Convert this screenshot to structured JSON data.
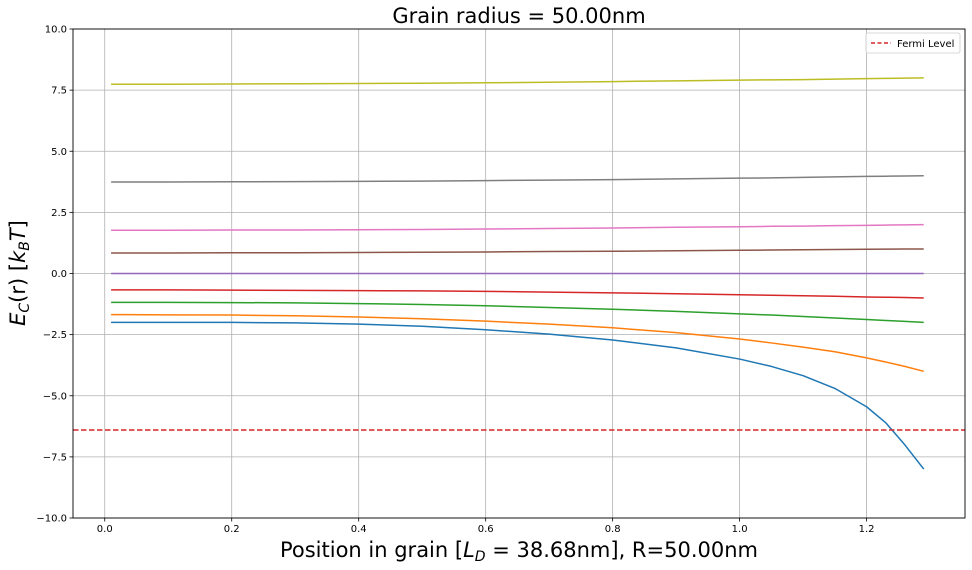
{
  "chart_data": {
    "type": "line",
    "title": "Grain radius = 50.00nm",
    "xlabel": "Position in grain [L_D = 38.68nm], R=50.00nm",
    "xlabel_parts": {
      "prefix": "Position in grain [",
      "sym": "L",
      "sub": "D",
      "suffix": " = 38.68nm], R=50.00nm"
    },
    "ylabel": "E_C(r) [k_BT]",
    "ylabel_parts": {
      "e": "E",
      "e_sub": "C",
      "mid": "(r) [",
      "k": "k",
      "k_sub": "B",
      "t": "T",
      "end": "]"
    },
    "xlim": [
      -0.05,
      1.355
    ],
    "ylim": [
      -10.0,
      10.0
    ],
    "x_ticks": [
      0.0,
      0.2,
      0.4,
      0.6,
      0.8,
      1.0,
      1.2
    ],
    "x_tick_labels": [
      "0.0",
      "0.2",
      "0.4",
      "0.6",
      "0.8",
      "1.0",
      "1.2"
    ],
    "y_ticks": [
      -10.0,
      -7.5,
      -5.0,
      -2.5,
      0.0,
      2.5,
      5.0,
      7.5,
      10.0
    ],
    "y_tick_labels": [
      "−10.0",
      "−7.5",
      "−5.0",
      "−2.5",
      "0.0",
      "2.5",
      "5.0",
      "7.5",
      "10.0"
    ],
    "grid": true,
    "legend_position": "top-right",
    "hline": {
      "name": "Fermi Level",
      "y": -6.4,
      "color": "#d62728",
      "style": "dashed"
    },
    "x": [
      0.01,
      0.1,
      0.2,
      0.3,
      0.4,
      0.5,
      0.6,
      0.7,
      0.8,
      0.9,
      1.0,
      1.05,
      1.1,
      1.15,
      1.2,
      1.23,
      1.26,
      1.29
    ],
    "series": [
      {
        "color": "#1f77b4",
        "values": [
          -2.0,
          -2.0,
          -2.0,
          -2.02,
          -2.07,
          -2.16,
          -2.3,
          -2.48,
          -2.72,
          -3.04,
          -3.5,
          -3.8,
          -4.18,
          -4.7,
          -5.45,
          -6.1,
          -7.0,
          -8.0
        ]
      },
      {
        "color": "#ff7f0e",
        "values": [
          -1.68,
          -1.69,
          -1.7,
          -1.73,
          -1.78,
          -1.85,
          -1.95,
          -2.07,
          -2.22,
          -2.42,
          -2.68,
          -2.84,
          -3.01,
          -3.2,
          -3.45,
          -3.62,
          -3.8,
          -4.0
        ]
      },
      {
        "color": "#2ca02c",
        "values": [
          -1.18,
          -1.18,
          -1.19,
          -1.2,
          -1.23,
          -1.27,
          -1.32,
          -1.39,
          -1.46,
          -1.55,
          -1.65,
          -1.7,
          -1.76,
          -1.82,
          -1.88,
          -1.92,
          -1.96,
          -2.0
        ]
      },
      {
        "color": "#d62728",
        "values": [
          -0.67,
          -0.67,
          -0.68,
          -0.69,
          -0.7,
          -0.71,
          -0.73,
          -0.76,
          -0.79,
          -0.83,
          -0.87,
          -0.89,
          -0.91,
          -0.93,
          -0.96,
          -0.97,
          -0.98,
          -1.0
        ]
      },
      {
        "color": "#9467bd",
        "values": [
          0.0,
          0.0,
          0.0,
          0.0,
          0.0,
          0.0,
          0.0,
          0.0,
          0.0,
          0.0,
          0.0,
          0.0,
          0.0,
          0.0,
          0.0,
          0.0,
          0.0,
          0.0
        ]
      },
      {
        "color": "#8c564b",
        "values": [
          0.84,
          0.84,
          0.85,
          0.85,
          0.86,
          0.87,
          0.88,
          0.9,
          0.91,
          0.93,
          0.95,
          0.96,
          0.97,
          0.98,
          0.99,
          0.995,
          1.0,
          1.0
        ]
      },
      {
        "color": "#e377c2",
        "values": [
          1.77,
          1.77,
          1.78,
          1.78,
          1.79,
          1.8,
          1.82,
          1.84,
          1.86,
          1.89,
          1.91,
          1.93,
          1.94,
          1.96,
          1.97,
          1.98,
          1.99,
          2.0
        ]
      },
      {
        "color": "#7f7f7f",
        "values": [
          3.74,
          3.74,
          3.75,
          3.76,
          3.77,
          3.78,
          3.8,
          3.82,
          3.84,
          3.87,
          3.9,
          3.91,
          3.93,
          3.95,
          3.97,
          3.98,
          3.99,
          4.0
        ]
      },
      {
        "color": "#bcbd22",
        "values": [
          7.74,
          7.74,
          7.75,
          7.76,
          7.77,
          7.78,
          7.8,
          7.82,
          7.85,
          7.88,
          7.91,
          7.92,
          7.93,
          7.95,
          7.97,
          7.98,
          7.99,
          8.0
        ]
      }
    ]
  }
}
